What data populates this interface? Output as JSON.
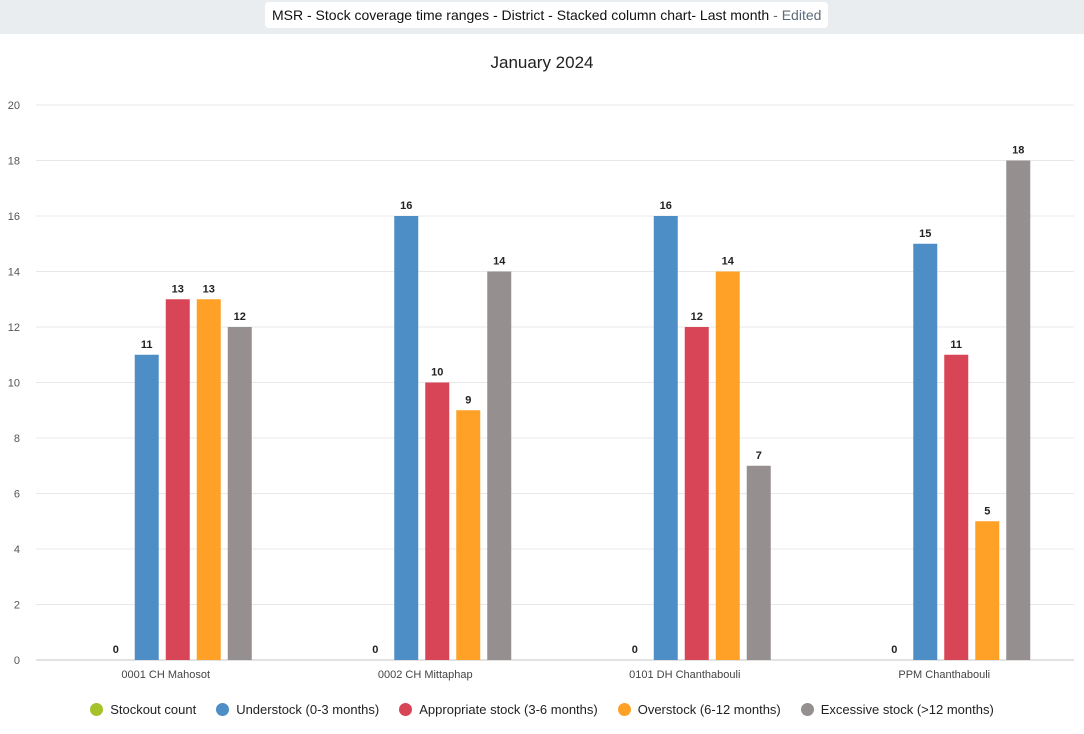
{
  "header": {
    "title": "MSR - Stock coverage time ranges - District - Stacked column chart- Last month",
    "edited": "- Edited"
  },
  "chart_data": {
    "type": "bar",
    "title": "January 2024",
    "categories": [
      "0001 CH Mahosot",
      "0002 CH Mittaphap",
      "0101 DH Chanthabouli",
      "PPM Chanthabouli"
    ],
    "series": [
      {
        "name": "Stockout count",
        "color": "#a6c22b",
        "values": [
          0,
          0,
          0,
          0
        ]
      },
      {
        "name": "Understock (0-3 months)",
        "color": "#4e8ec7",
        "values": [
          11,
          16,
          16,
          15
        ]
      },
      {
        "name": "Appropriate stock (3-6 months)",
        "color": "#d84556",
        "values": [
          13,
          10,
          12,
          11
        ]
      },
      {
        "name": "Overstock (6-12 months)",
        "color": "#ffa126",
        "values": [
          13,
          9,
          14,
          5
        ]
      },
      {
        "name": "Excessive stock (>12 months)",
        "color": "#968f8f",
        "values": [
          12,
          14,
          7,
          18
        ]
      }
    ],
    "yticks": [
      0,
      2,
      4,
      6,
      8,
      10,
      12,
      14,
      16,
      18,
      20
    ],
    "ylim": [
      0,
      20
    ],
    "grid": true,
    "legend_position": "bottom"
  }
}
